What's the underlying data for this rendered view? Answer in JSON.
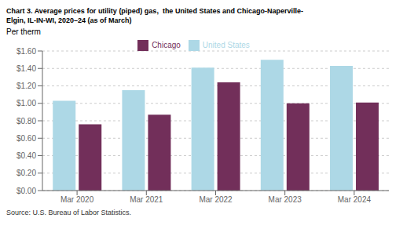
{
  "chart_data": {
    "type": "bar",
    "title": "Chart 3. Average prices for utility (piped) gas,  the United States and Chicago-Naperville-",
    "subtitle": "Elgin, IL-IN-WI, 2020–24 (as of March)",
    "ylabel": "Per therm",
    "annotations": [
      "Source: U.S. Bureau of Labor Statistics."
    ],
    "categories": [
      "Mar 2020",
      "Mar 2021",
      "Mar 2022",
      "Mar 2023",
      "Mar 2024"
    ],
    "series": [
      {
        "name": "United States",
        "color": "#ADD8E6",
        "values": [
          1.03,
          1.15,
          1.41,
          1.5,
          1.43
        ]
      },
      {
        "name": "Chicago",
        "color": "#722F5A",
        "values": [
          0.76,
          0.87,
          1.24,
          1.0,
          1.01
        ]
      }
    ],
    "ylim": [
      0,
      1.6
    ],
    "yticks": [
      {
        "value": 0.0,
        "label": "$0.00"
      },
      {
        "value": 0.2,
        "label": "$0.20"
      },
      {
        "value": 0.4,
        "label": "$0.40"
      },
      {
        "value": 0.6,
        "label": "$0.60"
      },
      {
        "value": 0.8,
        "label": "$0.80"
      },
      {
        "value": 1.0,
        "label": "$1.00"
      },
      {
        "value": 1.2,
        "label": "$1.20"
      },
      {
        "value": 1.4,
        "label": "$1.40"
      },
      {
        "value": 1.6,
        "label": "$1.60"
      }
    ],
    "grid": true,
    "legend": "top"
  }
}
